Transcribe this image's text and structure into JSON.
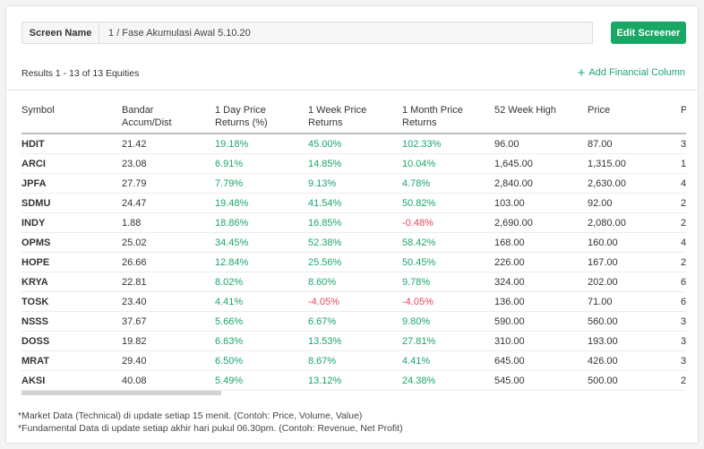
{
  "screen_name": {
    "label": "Screen Name",
    "value": "1 / Fase Akumulasi Awal 5.10.20"
  },
  "edit_button": "Edit Screener",
  "results_text": "Results 1 - 13 of 13 Equities",
  "add_column": {
    "icon": "plus-icon",
    "label": "Add Financial Column"
  },
  "colors": {
    "accent": "#18a765",
    "positive": "#1aa56b",
    "negative": "#e8455a"
  },
  "table": {
    "headers": [
      [
        "Symbol"
      ],
      [
        "Bandar",
        "Accum/Dist"
      ],
      [
        "1 Day Price",
        "Returns (%)"
      ],
      [
        "1 Week Price",
        "Returns"
      ],
      [
        "1 Month Price",
        "Returns"
      ],
      [
        "52 Week High"
      ],
      [
        "Price"
      ],
      [
        "P"
      ]
    ],
    "rows": [
      [
        "HDIT",
        "21.42",
        "19.18%",
        "45.00%",
        "102.33%",
        "96.00",
        "87.00",
        "3"
      ],
      [
        "ARCI",
        "23.08",
        "6.91%",
        "14.85%",
        "10.04%",
        "1,645.00",
        "1,315.00",
        "1"
      ],
      [
        "JPFA",
        "27.79",
        "7.79%",
        "9.13%",
        "4.78%",
        "2,840.00",
        "2,630.00",
        "4"
      ],
      [
        "SDMU",
        "24.47",
        "19.48%",
        "41.54%",
        "50.82%",
        "103.00",
        "92.00",
        "2"
      ],
      [
        "INDY",
        "1.88",
        "18.86%",
        "16.85%",
        "-0.48%",
        "2,690.00",
        "2,080.00",
        "2"
      ],
      [
        "OPMS",
        "25.02",
        "34.45%",
        "52.38%",
        "58.42%",
        "168.00",
        "160.00",
        "4"
      ],
      [
        "HOPE",
        "26.66",
        "12.84%",
        "25.56%",
        "50.45%",
        "226.00",
        "167.00",
        "2"
      ],
      [
        "KRYA",
        "22.81",
        "8.02%",
        "8.60%",
        "9.78%",
        "324.00",
        "202.00",
        "6"
      ],
      [
        "TOSK",
        "23.40",
        "4.41%",
        "-4.05%",
        "-4.05%",
        "136.00",
        "71.00",
        "6"
      ],
      [
        "NSSS",
        "37.67",
        "5.66%",
        "6.67%",
        "9.80%",
        "590.00",
        "560.00",
        "3"
      ],
      [
        "DOSS",
        "19.82",
        "6.63%",
        "13.53%",
        "27.81%",
        "310.00",
        "193.00",
        "3"
      ],
      [
        "MRAT",
        "29.40",
        "6.50%",
        "8.67%",
        "4.41%",
        "645.00",
        "426.00",
        "3"
      ],
      [
        "AKSI",
        "40.08",
        "5.49%",
        "13.12%",
        "24.38%",
        "545.00",
        "500.00",
        "2"
      ]
    ]
  },
  "footer": [
    "*Market Data (Technical) di update setiap 15 menit. (Contoh: Price, Volume, Value)",
    "*Fundamental Data di update setiap akhir hari pukul 06.30pm. (Contoh: Revenue, Net Profit)"
  ]
}
